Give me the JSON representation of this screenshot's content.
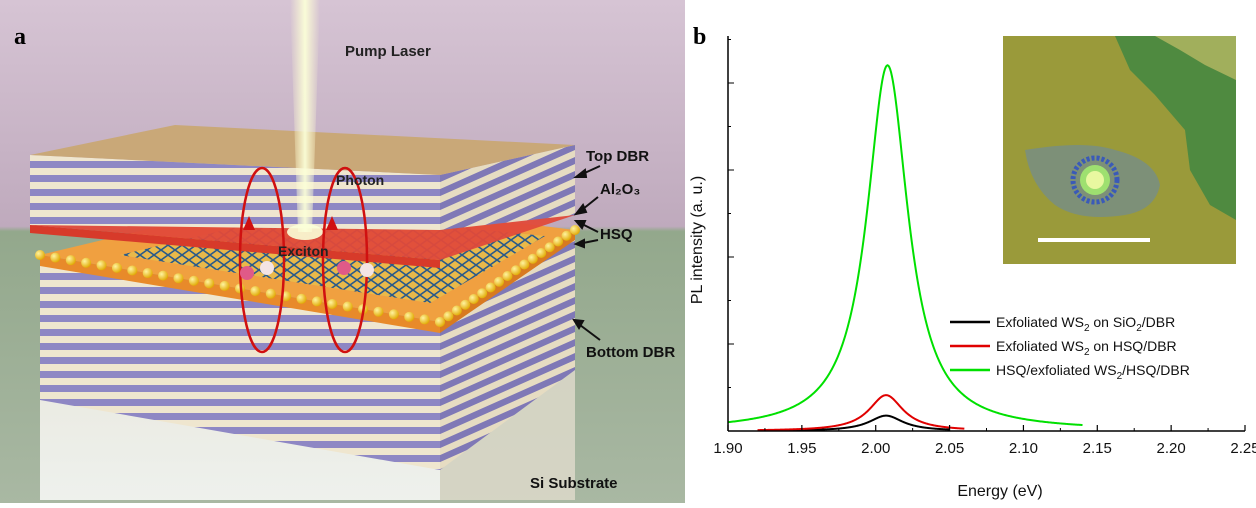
{
  "panel_a": {
    "panel_label": "a",
    "labels": {
      "pump_laser": "Pump Laser",
      "top_dbr": "Top DBR",
      "al2o3": "Al₂O₃",
      "hsq": "HSQ",
      "bottom_dbr": "Bottom DBR",
      "photon": "Photon",
      "exciton": "Exciton",
      "si_substrate": "Si Substrate"
    },
    "colors": {
      "background_top": "#c9b6c9",
      "background_floor": "#8fa387",
      "dbr_light": "#efe6cf",
      "dbr_dark": "#8e87c4",
      "top_surface": "#c9a878",
      "orange_layer": "#f0a040",
      "red_layer": "#e04a3a",
      "spheres": "#f0c020",
      "lattice": "#2a5a8a",
      "laser": "#f4f6c0",
      "arrow_red": "#d01010"
    }
  },
  "panel_b": {
    "panel_label": "b",
    "chart_data": {
      "type": "line",
      "xlabel": "Energy (eV)",
      "ylabel": "PL intensity (a. u.)",
      "xlim": [
        1.9,
        2.25
      ],
      "ylim": [
        0,
        1.08
      ],
      "xticks": [
        "1.90",
        "1.95",
        "2.00",
        "2.05",
        "2.10",
        "2.15",
        "2.20",
        "2.25"
      ],
      "y_tick_labels_shown": false,
      "legend_position": "bottom-right",
      "series": [
        {
          "name_parts": [
            "Exfoliated WS",
            "2",
            " on SiO",
            "2",
            "/DBR"
          ],
          "color": "#000000",
          "peak_x": 2.007,
          "peak_y": 0.042,
          "gamma": 0.014,
          "range": [
            1.93,
            2.05
          ]
        },
        {
          "name_parts": [
            "Exfoliated WS",
            "2",
            " on HSQ/DBR"
          ],
          "color": "#e00000",
          "peak_x": 2.007,
          "peak_y": 0.098,
          "gamma": 0.014,
          "range": [
            1.92,
            2.06
          ]
        },
        {
          "name_parts": [
            "HSQ/exfoliated WS",
            "2",
            "/HSQ/DBR"
          ],
          "color": "#00e000",
          "peak_x": 2.008,
          "peak_y": 1.0,
          "gamma": 0.017,
          "range": [
            1.9,
            2.14
          ]
        }
      ]
    },
    "inset": {
      "description_colors": {
        "background": "#9a9a3a",
        "flake_green": "#4f8a40",
        "flake_gray": "#7d9078",
        "spot": "#e8f8a0",
        "ring": "#3a5ab8",
        "scale_bar": "#ffffff"
      }
    }
  }
}
